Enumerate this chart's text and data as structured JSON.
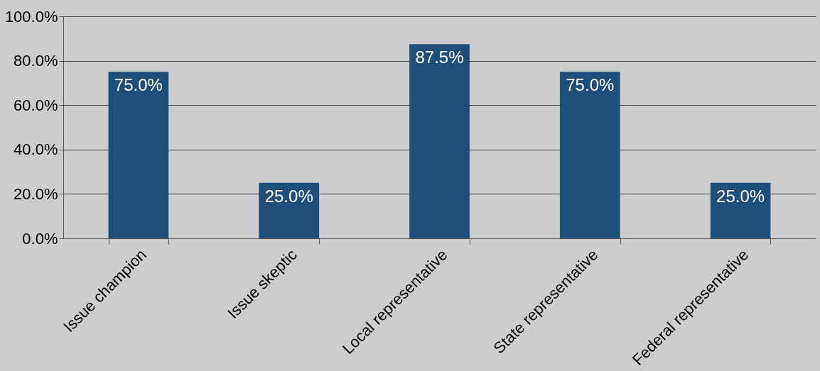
{
  "chart_data": {
    "type": "bar",
    "categories": [
      "Issue champion",
      "Issue skeptic",
      "Local representative",
      "State representative",
      "Federal representative"
    ],
    "values": [
      75,
      25,
      87.5,
      75,
      25
    ],
    "value_labels": [
      "75.0%",
      "25.0%",
      "87.5%",
      "75.0%",
      "25.0%"
    ],
    "color": "#1f4e79",
    "ylim": [
      0,
      100
    ],
    "yticks": [
      {
        "value": 0,
        "label": "0.0%"
      },
      {
        "value": 20,
        "label": "20.0%"
      },
      {
        "value": 40,
        "label": "40.0%"
      },
      {
        "value": 60,
        "label": "60.0%"
      },
      {
        "value": 80,
        "label": "80.0%"
      },
      {
        "value": 100,
        "label": "100.0%"
      }
    ],
    "grid": "y"
  }
}
